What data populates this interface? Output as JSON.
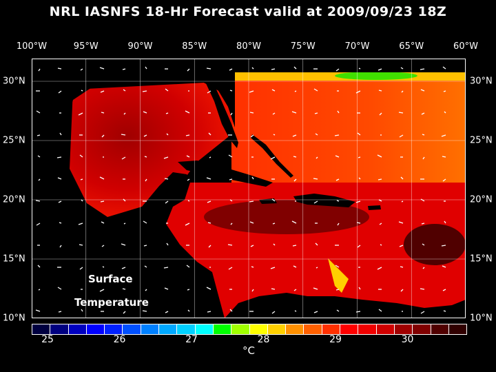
{
  "title": "NRL IASNFS  18-Hr Forecast valid at 2009/09/23 18Z",
  "longitude_labels": [
    "100°W",
    "95°W",
    "90°W",
    "85°W",
    "80°W",
    "75°W",
    "70°W",
    "65°W",
    "60°W"
  ],
  "latitude_labels": [
    "30°N",
    "25°N",
    "20°N",
    "15°N",
    "10°N"
  ],
  "map_label": {
    "line1": "Surface",
    "line2": "Temperature"
  },
  "colorbar": {
    "colors": [
      "#000040",
      "#000080",
      "#0000c0",
      "#0000ff",
      "#0020ff",
      "#0050ff",
      "#0080ff",
      "#00a8ff",
      "#00d0ff",
      "#00ffff",
      "#00ff00",
      "#a0ff00",
      "#ffff00",
      "#ffd000",
      "#ff9000",
      "#ff6000",
      "#ff3000",
      "#ff0000",
      "#f00000",
      "#d00000",
      "#a00000",
      "#800000",
      "#500000",
      "#300000"
    ],
    "tick_labels": [
      "25",
      "26",
      "27",
      "28",
      "29",
      "30"
    ],
    "unit": "°C"
  }
}
